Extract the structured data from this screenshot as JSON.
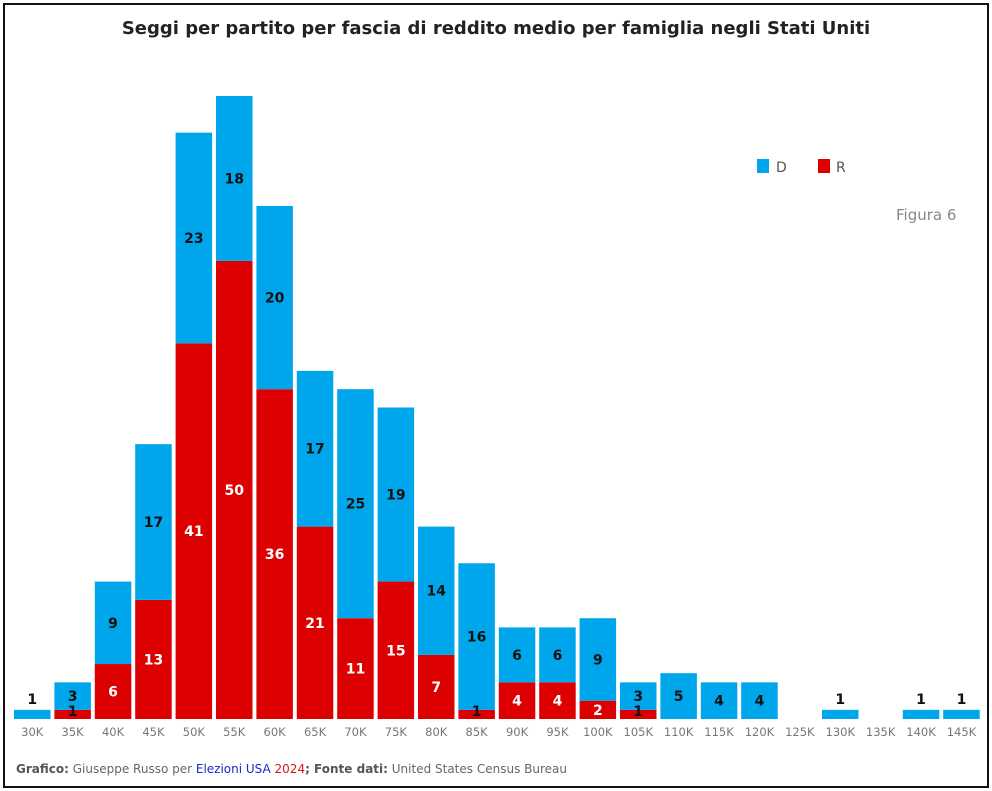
{
  "colors": {
    "D": "#00a6ec",
    "R": "#dd0000"
  },
  "footer": {
    "grafico_label": "Grafico:",
    "author": " Giuseppe Russo per ",
    "brand_a": "Elezioni USA",
    "brand_b": " 2024",
    "fonte_label": "; Fonte dati:",
    "source": " United States Census Bureau"
  },
  "figure_label": "Figura 6",
  "chart_data": {
    "type": "bar",
    "stacked": true,
    "title": "Seggi per partito per fascia di reddito medio per famiglia negli Stati Uniti",
    "xlabel": "",
    "ylabel": "",
    "ylim": [
      0,
      68
    ],
    "legend": {
      "position": "top-right",
      "entries": [
        "D",
        "R"
      ]
    },
    "categories": [
      "30K",
      "35K",
      "40K",
      "45K",
      "50K",
      "55K",
      "60K",
      "65K",
      "70K",
      "75K",
      "80K",
      "85K",
      "90K",
      "95K",
      "100K",
      "105K",
      "110K",
      "115K",
      "120K",
      "125K",
      "130K",
      "135K",
      "140K",
      "145K"
    ],
    "series": [
      {
        "name": "R",
        "values": [
          0,
          1,
          6,
          13,
          41,
          50,
          36,
          21,
          11,
          15,
          7,
          1,
          4,
          4,
          2,
          1,
          0,
          0,
          0,
          0,
          0,
          0,
          0,
          0
        ]
      },
      {
        "name": "D",
        "values": [
          1,
          3,
          9,
          17,
          23,
          18,
          20,
          17,
          25,
          19,
          14,
          16,
          6,
          6,
          9,
          3,
          5,
          4,
          4,
          0,
          1,
          0,
          1,
          1
        ]
      }
    ]
  }
}
